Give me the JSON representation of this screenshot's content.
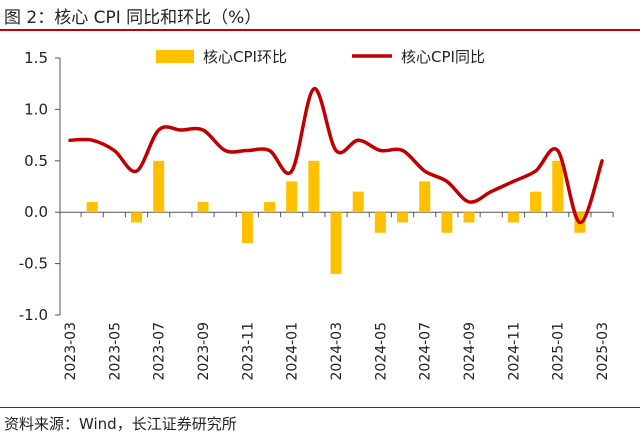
{
  "header": {
    "title": "图 2：核心 CPI 同比和环比（%）"
  },
  "footer": {
    "source": "资料来源：Wind，长江证券研究所"
  },
  "colors": {
    "bar": "#FFC000",
    "line": "#C00000",
    "rule": "#C00000"
  },
  "chart_data": {
    "type": "bar",
    "title": "",
    "xlabel": "",
    "ylabel": "",
    "ylim": [
      -1.0,
      1.5
    ],
    "yticks": [
      "1.5",
      "1.0",
      "0.5",
      "0.0",
      "-0.5",
      "-1.0"
    ],
    "ytick_values": [
      1.5,
      1.0,
      0.5,
      0.0,
      -0.5,
      -1.0
    ],
    "grid": false,
    "legend_position": "top",
    "x": [
      "2023-03",
      "2023-04",
      "2023-05",
      "2023-06",
      "2023-07",
      "2023-08",
      "2023-09",
      "2023-10",
      "2023-11",
      "2023-12",
      "2024-01",
      "2024-02",
      "2024-03",
      "2024-04",
      "2024-05",
      "2024-06",
      "2024-07",
      "2024-08",
      "2024-09",
      "2024-10",
      "2024-11",
      "2024-12",
      "2025-01",
      "2025-02",
      "2025-03"
    ],
    "xtick_labels": [
      "2023-03",
      "2023-05",
      "2023-07",
      "2023-09",
      "2023-11",
      "2024-01",
      "2024-03",
      "2024-05",
      "2024-07",
      "2024-09",
      "2024-11",
      "2025-01",
      "2025-03"
    ],
    "series": [
      {
        "name": "核心CPI环比",
        "type": "bar",
        "values": [
          0.0,
          0.1,
          0.0,
          -0.1,
          0.5,
          0.0,
          0.1,
          0.0,
          -0.3,
          0.1,
          0.3,
          0.5,
          -0.6,
          0.2,
          -0.2,
          -0.1,
          0.3,
          -0.2,
          -0.1,
          0.0,
          -0.1,
          0.2,
          0.5,
          -0.2,
          0.0
        ]
      },
      {
        "name": "核心CPI同比",
        "type": "line",
        "values": [
          0.7,
          0.7,
          0.6,
          0.4,
          0.8,
          0.8,
          0.8,
          0.6,
          0.6,
          0.6,
          0.4,
          1.2,
          0.6,
          0.7,
          0.6,
          0.6,
          0.4,
          0.3,
          0.1,
          0.2,
          0.3,
          0.4,
          0.6,
          -0.1,
          0.5
        ]
      }
    ]
  }
}
